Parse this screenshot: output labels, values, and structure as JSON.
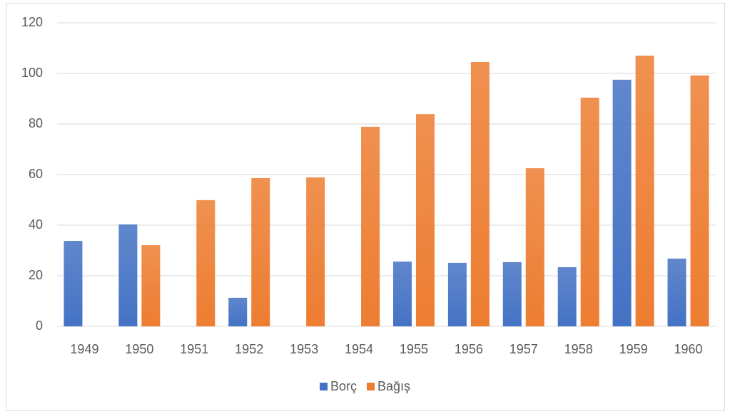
{
  "chart_data": {
    "type": "bar",
    "categories": [
      "1949",
      "1950",
      "1951",
      "1952",
      "1953",
      "1954",
      "1955",
      "1956",
      "1957",
      "1958",
      "1959",
      "1960"
    ],
    "series": [
      {
        "name": "Borç",
        "color": "#4472c4",
        "values": [
          33.8,
          40.3,
          0,
          11.3,
          0,
          0,
          25.6,
          25.1,
          25.4,
          23.4,
          97.5,
          26.8
        ]
      },
      {
        "name": "Bağış",
        "color": "#ed7d31",
        "values": [
          0,
          32.1,
          49.9,
          58.6,
          58.9,
          78.9,
          83.9,
          104.5,
          62.5,
          90.4,
          107,
          99.2
        ]
      }
    ],
    "ylim": [
      0,
      120
    ],
    "yticks": [
      0,
      20,
      40,
      60,
      80,
      100,
      120
    ],
    "grid": true,
    "legend": "bottom"
  }
}
